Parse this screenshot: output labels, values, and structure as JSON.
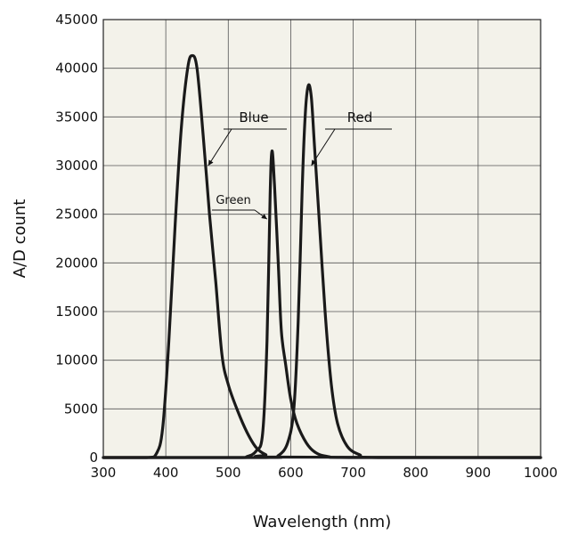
{
  "chart_data": {
    "type": "line",
    "title": "",
    "xlabel": "Wavelength (nm)",
    "ylabel": "A/D count",
    "xlim": [
      300,
      1000
    ],
    "ylim": [
      0,
      45000
    ],
    "x_ticks": [
      "300",
      "400",
      "500",
      "600",
      "700",
      "800",
      "900",
      "1000"
    ],
    "y_ticks": [
      "0",
      "5000",
      "10000",
      "15000",
      "20000",
      "25000",
      "30000",
      "35000",
      "40000",
      "45000"
    ],
    "grid": true,
    "background_color": "#f3f2ea",
    "line_color": "#1a1a1a",
    "series": [
      {
        "name": "Blue",
        "points": [
          [
            300,
            0
          ],
          [
            370,
            0
          ],
          [
            385,
            400
          ],
          [
            395,
            3000
          ],
          [
            405,
            12000
          ],
          [
            415,
            24000
          ],
          [
            425,
            34000
          ],
          [
            435,
            40000
          ],
          [
            442,
            41300
          ],
          [
            450,
            40000
          ],
          [
            460,
            33000
          ],
          [
            470,
            25000
          ],
          [
            480,
            18000
          ],
          [
            490,
            10500
          ],
          [
            500,
            7500
          ],
          [
            515,
            4800
          ],
          [
            530,
            2600
          ],
          [
            545,
            1000
          ],
          [
            560,
            300
          ],
          [
            580,
            50
          ],
          [
            1000,
            0
          ]
        ]
      },
      {
        "name": "Green",
        "points": [
          [
            300,
            0
          ],
          [
            510,
            0
          ],
          [
            530,
            100
          ],
          [
            545,
            700
          ],
          [
            555,
            2500
          ],
          [
            562,
            12000
          ],
          [
            567,
            27000
          ],
          [
            570,
            31500
          ],
          [
            574,
            28000
          ],
          [
            580,
            20000
          ],
          [
            585,
            13000
          ],
          [
            592,
            9500
          ],
          [
            600,
            6000
          ],
          [
            610,
            3500
          ],
          [
            625,
            1500
          ],
          [
            640,
            500
          ],
          [
            660,
            100
          ],
          [
            700,
            0
          ],
          [
            1000,
            0
          ]
        ]
      },
      {
        "name": "Red",
        "points": [
          [
            300,
            0
          ],
          [
            560,
            0
          ],
          [
            580,
            200
          ],
          [
            595,
            1500
          ],
          [
            605,
            5000
          ],
          [
            612,
            14000
          ],
          [
            618,
            27000
          ],
          [
            623,
            35000
          ],
          [
            628,
            38200
          ],
          [
            633,
            37000
          ],
          [
            638,
            32000
          ],
          [
            645,
            25000
          ],
          [
            655,
            15000
          ],
          [
            665,
            7500
          ],
          [
            675,
            3500
          ],
          [
            690,
            1200
          ],
          [
            710,
            300
          ],
          [
            740,
            0
          ],
          [
            1000,
            0
          ]
        ]
      }
    ],
    "annotations": [
      {
        "text": "Blue",
        "series": "Blue",
        "arrow_to": [
          468,
          30000
        ]
      },
      {
        "text": "Green",
        "series": "Green",
        "arrow_to": [
          562,
          24500
        ]
      },
      {
        "text": "Red",
        "series": "Red",
        "arrow_to": [
          633,
          30000
        ]
      }
    ]
  }
}
